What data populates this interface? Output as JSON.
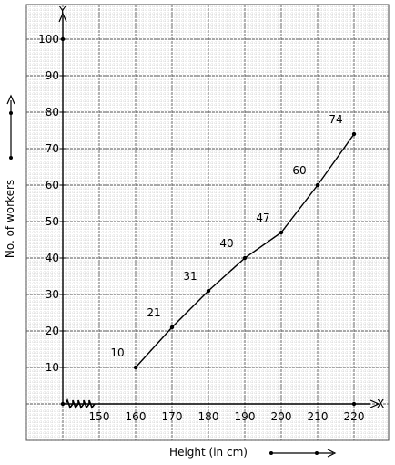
{
  "chart_data": {
    "type": "line",
    "x": [
      160,
      170,
      180,
      190,
      200,
      210,
      220
    ],
    "values": [
      10,
      21,
      31,
      40,
      47,
      60,
      74
    ],
    "point_labels": [
      "10",
      "21",
      "31",
      "40",
      "47",
      "60",
      "74"
    ],
    "x_ticks": [
      "150",
      "160",
      "170",
      "180",
      "190",
      "200",
      "210",
      "220"
    ],
    "y_ticks": [
      "10",
      "20",
      "30",
      "40",
      "50",
      "60",
      "70",
      "80",
      "90",
      "100"
    ],
    "xlabel": "Height (in cm)",
    "ylabel": "No. of workers",
    "x_axis_letter": "X",
    "y_axis_letter": "Y",
    "xlim": [
      140,
      220
    ],
    "ylim": [
      0,
      100
    ],
    "x_axis_break": true,
    "grid": true,
    "grid_style": "graph paper"
  }
}
